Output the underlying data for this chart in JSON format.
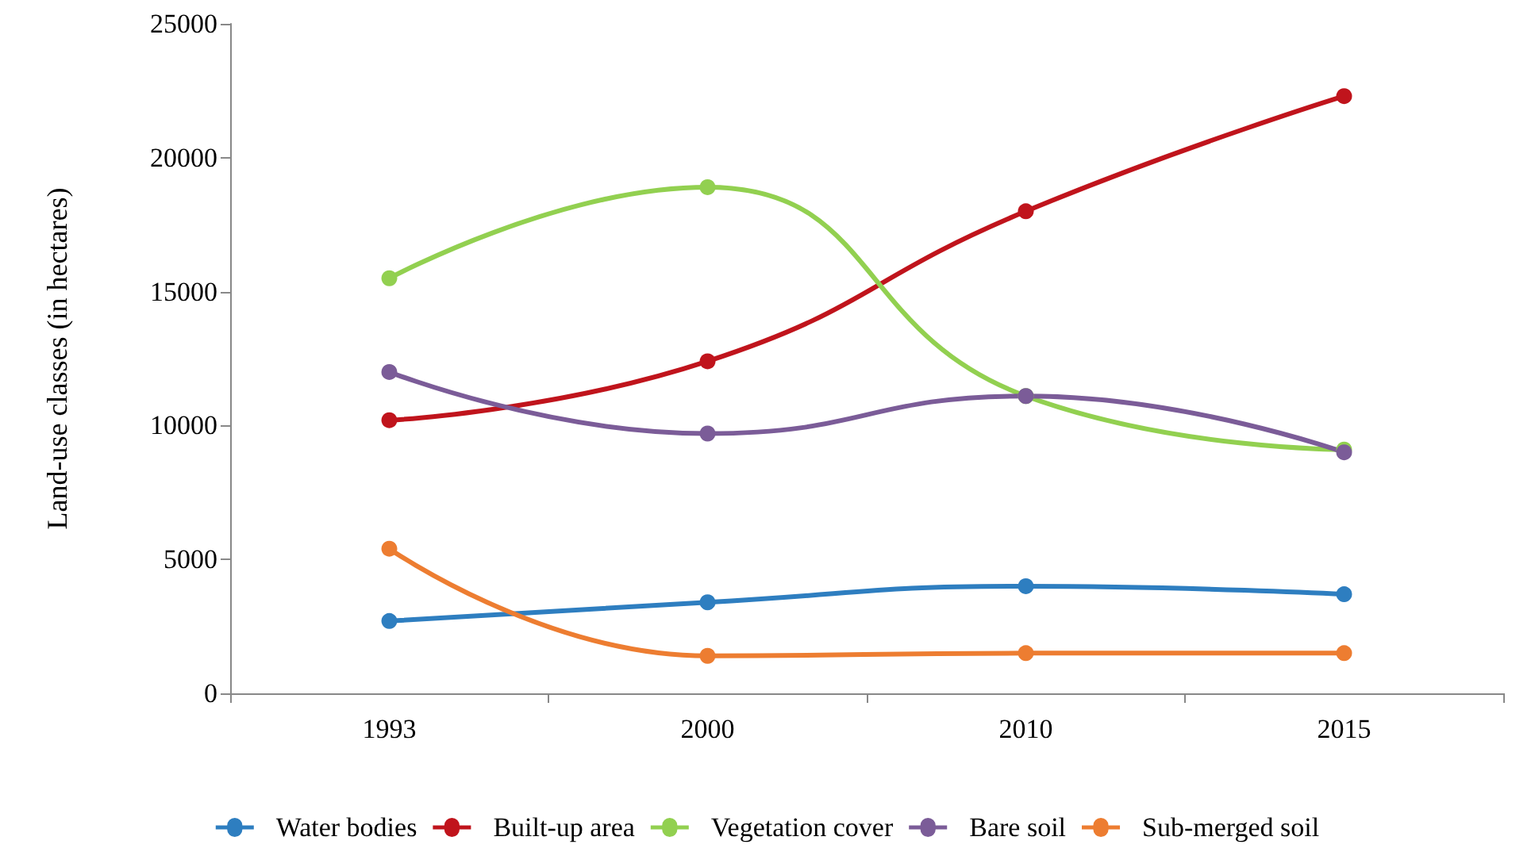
{
  "chart_data": {
    "type": "line",
    "ylabel": "Land-use classes (in hectares)",
    "categories": [
      "1993",
      "2000",
      "2010",
      "2015"
    ],
    "series": [
      {
        "name": "Water bodies",
        "color": "#2e7ec0",
        "values": [
          2700,
          3400,
          4000,
          3700
        ]
      },
      {
        "name": "Built-up area",
        "color": "#c0141c",
        "values": [
          10200,
          12400,
          18000,
          22300
        ]
      },
      {
        "name": "Vegetation cover",
        "color": "#92d050",
        "values": [
          15500,
          18900,
          11100,
          9100
        ]
      },
      {
        "name": "Bare soil",
        "color": "#7b5c98",
        "values": [
          12000,
          9700,
          11100,
          9000
        ]
      },
      {
        "name": "Sub-merged soil",
        "color": "#ed7d31",
        "values": [
          5400,
          1400,
          1500,
          1500
        ]
      }
    ],
    "ylim": [
      0,
      25000
    ],
    "yticks": [
      0,
      5000,
      10000,
      15000,
      20000,
      25000
    ],
    "grid": false,
    "legend": "bottom",
    "marker": "circle",
    "line_style": "solid"
  }
}
